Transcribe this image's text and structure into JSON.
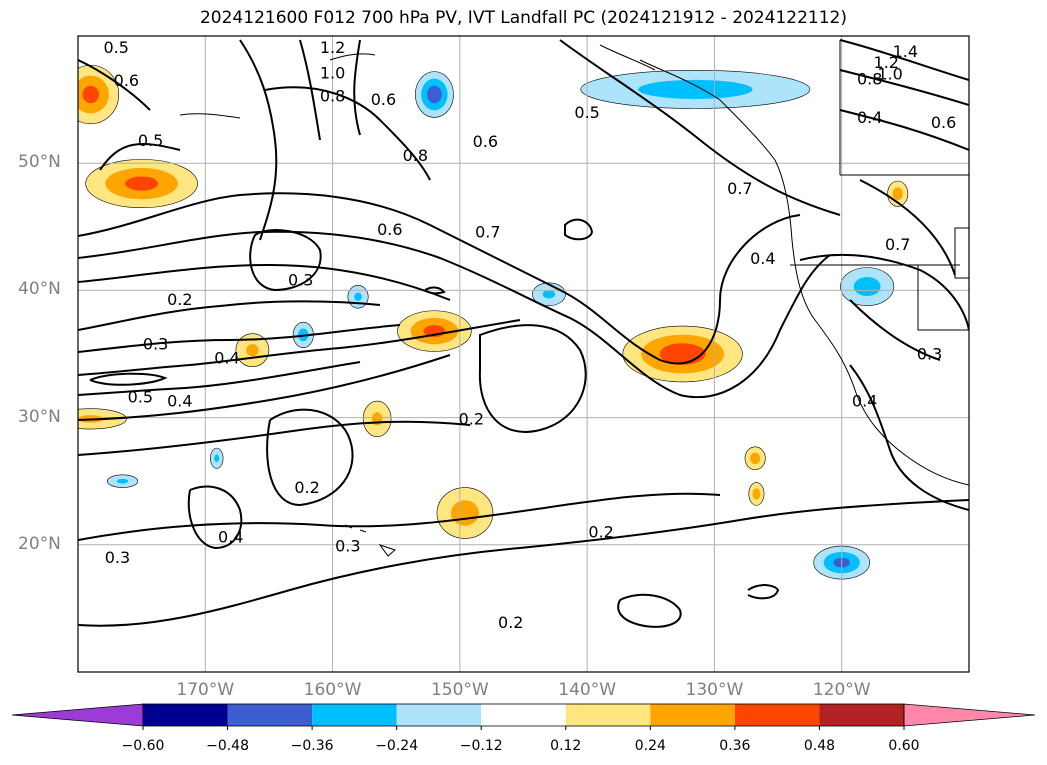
{
  "title": "2024121600 F012 700 hPa PV, IVT Landfall PC (2024121912 - 2024122112)",
  "map": {
    "lat_range": [
      10,
      60
    ],
    "lon_range": [
      -180,
      -110
    ],
    "lat_labels": [
      {
        "lat": 50,
        "text": "50°N"
      },
      {
        "lat": 40,
        "text": "40°N"
      },
      {
        "lat": 30,
        "text": "30°N"
      },
      {
        "lat": 20,
        "text": "20°N"
      }
    ],
    "lon_labels": [
      {
        "lon": -170,
        "text": "170°W"
      },
      {
        "lon": -160,
        "text": "160°W"
      },
      {
        "lon": -150,
        "text": "150°W"
      },
      {
        "lon": -140,
        "text": "140°W"
      },
      {
        "lon": -130,
        "text": "130°W"
      },
      {
        "lon": -120,
        "text": "120°W"
      }
    ],
    "gridlines": true,
    "grid_color": "#b0b0b0",
    "label_color": "#808080"
  },
  "contour_labels": [
    {
      "text": "0.5",
      "lon": -177.0,
      "lat": 59.1
    },
    {
      "text": "1.2",
      "lon": -160.0,
      "lat": 59.1
    },
    {
      "text": "1.0",
      "lon": -160.0,
      "lat": 57.1
    },
    {
      "text": "0.8",
      "lon": -160.0,
      "lat": 55.3
    },
    {
      "text": "0.6",
      "lon": -156.0,
      "lat": 55.0
    },
    {
      "text": "0.6",
      "lon": -176.2,
      "lat": 56.5
    },
    {
      "text": "0.5",
      "lon": -174.3,
      "lat": 51.8
    },
    {
      "text": "0.6",
      "lon": -148.0,
      "lat": 51.7
    },
    {
      "text": "0.8",
      "lon": -153.5,
      "lat": 50.6
    },
    {
      "text": "0.5",
      "lon": -140.0,
      "lat": 54.0
    },
    {
      "text": "0.7",
      "lon": -128.0,
      "lat": 48.0
    },
    {
      "text": "1.4",
      "lon": -115.0,
      "lat": 58.8
    },
    {
      "text": "1.2",
      "lon": -116.5,
      "lat": 57.9
    },
    {
      "text": "1.0",
      "lon": -116.2,
      "lat": 57.0
    },
    {
      "text": "0.8",
      "lon": -117.8,
      "lat": 56.6
    },
    {
      "text": "0.4",
      "lon": -117.8,
      "lat": 53.6
    },
    {
      "text": "0.6",
      "lon": -112.0,
      "lat": 53.2
    },
    {
      "text": "0.6",
      "lon": -155.5,
      "lat": 44.8
    },
    {
      "text": "0.7",
      "lon": -147.8,
      "lat": 44.6
    },
    {
      "text": "0.4",
      "lon": -126.2,
      "lat": 42.5
    },
    {
      "text": "0.7",
      "lon": -115.6,
      "lat": 43.6
    },
    {
      "text": "0.3",
      "lon": -162.5,
      "lat": 40.8
    },
    {
      "text": "0.2",
      "lon": -172.0,
      "lat": 39.3
    },
    {
      "text": "0.3",
      "lon": -173.9,
      "lat": 35.8
    },
    {
      "text": "0.4",
      "lon": -168.3,
      "lat": 34.7
    },
    {
      "text": "0.5",
      "lon": -175.1,
      "lat": 31.6
    },
    {
      "text": "0.4",
      "lon": -172.0,
      "lat": 31.3
    },
    {
      "text": "0.2",
      "lon": -149.1,
      "lat": 29.9
    },
    {
      "text": "0.3",
      "lon": -113.1,
      "lat": 35.0
    },
    {
      "text": "0.4",
      "lon": -118.2,
      "lat": 31.3
    },
    {
      "text": "0.2",
      "lon": -162.0,
      "lat": 24.5
    },
    {
      "text": "0.4",
      "lon": -168.0,
      "lat": 20.6
    },
    {
      "text": "0.3",
      "lon": -158.8,
      "lat": 19.9
    },
    {
      "text": "0.2",
      "lon": -138.9,
      "lat": 21.0
    },
    {
      "text": "0.3",
      "lon": -176.9,
      "lat": 19.0
    },
    {
      "text": "0.2",
      "lon": -146.0,
      "lat": 13.9
    }
  ],
  "shaded_anomalies": [
    {
      "lon": -179.0,
      "lat": 55.4,
      "rx": 2.2,
      "ry": 2.3,
      "sign": "positive",
      "peak": 0.4
    },
    {
      "lon": -175.0,
      "lat": 48.4,
      "rx": 4.4,
      "ry": 1.9,
      "sign": "positive",
      "peak": 0.4
    },
    {
      "lon": -152.0,
      "lat": 55.4,
      "rx": 1.5,
      "ry": 1.8,
      "sign": "negative",
      "peak": -0.45
    },
    {
      "lon": -131.5,
      "lat": 55.8,
      "rx": 9.0,
      "ry": 1.5,
      "sign": "negative",
      "peak": -0.3
    },
    {
      "lon": -166.3,
      "lat": 35.3,
      "rx": 1.3,
      "ry": 1.3,
      "sign": "positive",
      "peak": 0.25
    },
    {
      "lon": -162.3,
      "lat": 36.5,
      "rx": 0.8,
      "ry": 1.0,
      "sign": "negative",
      "peak": -0.3
    },
    {
      "lon": -158.0,
      "lat": 39.5,
      "rx": 0.8,
      "ry": 0.9,
      "sign": "negative",
      "peak": -0.25
    },
    {
      "lon": -152.0,
      "lat": 36.8,
      "rx": 2.9,
      "ry": 1.6,
      "sign": "positive",
      "peak": 0.4
    },
    {
      "lon": -143.0,
      "lat": 39.7,
      "rx": 1.3,
      "ry": 0.9,
      "sign": "negative",
      "peak": -0.25
    },
    {
      "lon": -132.5,
      "lat": 35.0,
      "rx": 4.7,
      "ry": 2.2,
      "sign": "positive",
      "peak": 0.45
    },
    {
      "lon": -118.0,
      "lat": 40.3,
      "rx": 2.1,
      "ry": 1.5,
      "sign": "negative",
      "peak": -0.3
    },
    {
      "lon": -115.6,
      "lat": 47.6,
      "rx": 0.8,
      "ry": 1.0,
      "sign": "positive",
      "peak": 0.3
    },
    {
      "lon": -179.0,
      "lat": 29.9,
      "rx": 2.8,
      "ry": 0.8,
      "sign": "positive",
      "peak": 0.25
    },
    {
      "lon": -156.5,
      "lat": 29.9,
      "rx": 1.1,
      "ry": 1.4,
      "sign": "positive",
      "peak": 0.25
    },
    {
      "lon": -149.6,
      "lat": 22.5,
      "rx": 2.2,
      "ry": 2.0,
      "sign": "positive",
      "peak": 0.3
    },
    {
      "lon": -126.8,
      "lat": 26.8,
      "rx": 0.8,
      "ry": 0.9,
      "sign": "positive",
      "peak": 0.3
    },
    {
      "lon": -126.7,
      "lat": 24.0,
      "rx": 0.6,
      "ry": 0.9,
      "sign": "positive",
      "peak": 0.3
    },
    {
      "lon": -120.0,
      "lat": 18.6,
      "rx": 2.2,
      "ry": 1.3,
      "sign": "negative",
      "peak": -0.4
    },
    {
      "lon": -176.5,
      "lat": 25.0,
      "rx": 1.2,
      "ry": 0.5,
      "sign": "negative",
      "peak": -0.25
    },
    {
      "lon": -169.1,
      "lat": 26.8,
      "rx": 0.5,
      "ry": 0.8,
      "sign": "negative",
      "peak": -0.25
    }
  ],
  "colorbar": {
    "levels": [
      -0.6,
      -0.48,
      -0.36,
      -0.24,
      -0.12,
      0.12,
      0.24,
      0.36,
      0.48,
      0.6
    ],
    "colors": [
      "#9c3bd6",
      "#000090",
      "#3c5ed0",
      "#00bfff",
      "#aee4fb",
      "#ffffff",
      "#ffe680",
      "#ffa500",
      "#ff4500",
      "#b22222",
      "#ff88aa"
    ],
    "tick_labels": [
      "−0.60",
      "−0.48",
      "−0.36",
      "−0.24",
      "−0.12",
      "0.12",
      "0.24",
      "0.36",
      "0.48",
      "0.60"
    ],
    "extend": "both"
  }
}
